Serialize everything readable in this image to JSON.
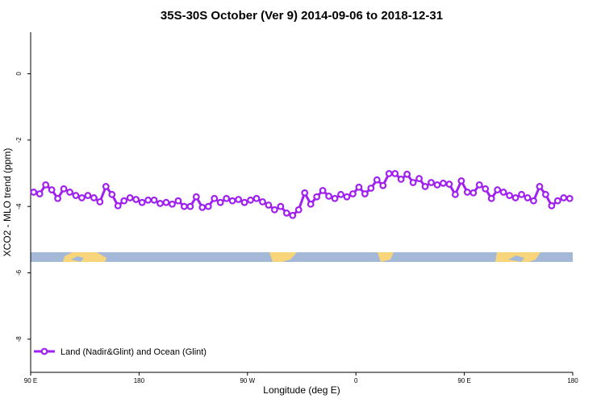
{
  "chart_data": {
    "type": "line",
    "title": "35S-30S October (Ver 9)   2014-09-06 to 2018-12-31",
    "x_label": "Longitude (deg E)",
    "y_label": "XCO2 - MLO trend (ppm)",
    "x": [
      92.5,
      97.5,
      102.5,
      107.5,
      112.5,
      117.5,
      122.5,
      127.5,
      132.5,
      137.5,
      142.5,
      147.5,
      152.5,
      157.5,
      162.5,
      167.5,
      172.5,
      177.5,
      182.5,
      187.5,
      192.5,
      197.5,
      202.5,
      207.5,
      212.5,
      217.5,
      222.5,
      227.5,
      232.5,
      237.5,
      242.5,
      247.5,
      252.5,
      257.5,
      262.5,
      267.5,
      272.5,
      277.5,
      282.5,
      287.5,
      292.5,
      297.5,
      302.5,
      307.5,
      312.5,
      317.5,
      322.5,
      327.5,
      332.5,
      337.5,
      342.5,
      347.5,
      352.5,
      357.5,
      362.5,
      367.5,
      372.5,
      377.5,
      382.5,
      387.5,
      392.5,
      397.5,
      402.5,
      407.5,
      412.5,
      417.5,
      422.5,
      427.5,
      432.5,
      437.5,
      442.5,
      447.5,
      452.5,
      457.5,
      462.5,
      467.5,
      472.5,
      477.5,
      482.5,
      487.5,
      492.5,
      497.5,
      502.5,
      507.5,
      512.5,
      517.5,
      522.5,
      527.5,
      532.5,
      537.5
    ],
    "series": [
      {
        "name": "Land (Nadir&Glint) and Ocean (Glint)",
        "color": "#a020f0",
        "values": [
          -3.57,
          -3.62,
          -3.35,
          -3.5,
          -3.76,
          -3.47,
          -3.57,
          -3.67,
          -3.74,
          -3.67,
          -3.74,
          -3.86,
          -3.4,
          -3.64,
          -3.98,
          -3.83,
          -3.74,
          -3.79,
          -3.88,
          -3.81,
          -3.81,
          -3.91,
          -3.88,
          -3.93,
          -3.83,
          -4.0,
          -4.0,
          -3.71,
          -4.03,
          -4.0,
          -3.76,
          -3.88,
          -3.76,
          -3.83,
          -3.79,
          -3.88,
          -3.81,
          -3.76,
          -3.86,
          -3.96,
          -4.1,
          -4.0,
          -4.2,
          -4.27,
          -4.1,
          -3.59,
          -3.93,
          -3.71,
          -3.52,
          -3.69,
          -3.76,
          -3.64,
          -3.71,
          -3.62,
          -3.42,
          -3.62,
          -3.45,
          -3.2,
          -3.37,
          -3.01,
          -3.01,
          -3.18,
          -3.03,
          -3.28,
          -3.16,
          -3.4,
          -3.28,
          -3.35,
          -3.3,
          -3.33,
          -3.64,
          -3.23,
          -3.57,
          -3.59,
          -3.35,
          -3.47,
          -3.76,
          -3.5,
          -3.57,
          -3.67,
          -3.74,
          -3.64,
          -3.74,
          -3.83,
          -3.4,
          -3.64,
          -3.98,
          -3.83,
          -3.74,
          -3.76
        ]
      }
    ],
    "xlim": [
      90,
      540
    ],
    "xticks": [
      {
        "value": 90,
        "label": "90 E"
      },
      180,
      {
        "value": 270,
        "label": "90 W"
      },
      {
        "value": 360,
        "label": "0"
      },
      {
        "value": 450,
        "label": "90 E"
      },
      {
        "value": 540,
        "label": "180"
      }
    ],
    "ylim": [
      -9.0,
      1.25
    ],
    "yticks": [
      0,
      -2,
      -4,
      -6,
      -8
    ],
    "legend_position": "bottom left"
  }
}
